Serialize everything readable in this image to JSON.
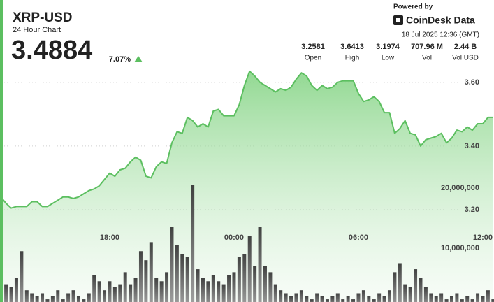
{
  "header": {
    "title": "XRP-USD",
    "subtitle": "24 Hour Chart",
    "price": "3.4884",
    "change": "7.07%",
    "powered_by": "Powered by",
    "brand": "CoinDesk Data",
    "timestamp": "18 Jul 2025 12:36 (GMT)",
    "stats": [
      {
        "value": "3.2581",
        "label": "Open"
      },
      {
        "value": "3.6413",
        "label": "High"
      },
      {
        "value": "3.1974",
        "label": "Low"
      },
      {
        "value": "707.96 M",
        "label": "Vol"
      },
      {
        "value": "2.44 B",
        "label": "Vol USD"
      }
    ]
  },
  "chart_data": {
    "type": "line",
    "categories": [
      null,
      null,
      null,
      null,
      null,
      null,
      null,
      null,
      null,
      null,
      null,
      null,
      null,
      null,
      null,
      null,
      null,
      null,
      null,
      null,
      null,
      "18:00",
      null,
      null,
      null,
      null,
      null,
      null,
      null,
      null,
      null,
      null,
      null,
      null,
      null,
      null,
      null,
      null,
      null,
      null,
      null,
      null,
      null,
      null,
      null,
      "00:00",
      null,
      null,
      null,
      null,
      null,
      null,
      null,
      null,
      null,
      null,
      null,
      null,
      null,
      null,
      null,
      null,
      null,
      null,
      null,
      null,
      null,
      null,
      null,
      "06:00",
      null,
      null,
      null,
      null,
      null,
      null,
      null,
      null,
      null,
      null,
      null,
      null,
      null,
      null,
      null,
      null,
      null,
      null,
      null,
      null,
      null,
      null,
      null,
      "12:00",
      null,
      null
    ],
    "series": [
      {
        "name": "Price",
        "type": "line",
        "axis": "y",
        "color": "#5cbf60",
        "values": [
          3.24,
          3.22,
          3.205,
          3.21,
          3.21,
          3.21,
          3.225,
          3.225,
          3.21,
          3.21,
          3.22,
          3.23,
          3.24,
          3.24,
          3.235,
          3.24,
          3.25,
          3.26,
          3.265,
          3.275,
          3.295,
          3.315,
          3.305,
          3.325,
          3.33,
          3.35,
          3.365,
          3.355,
          3.305,
          3.3,
          3.335,
          3.35,
          3.345,
          3.41,
          3.445,
          3.44,
          3.49,
          3.48,
          3.46,
          3.47,
          3.46,
          3.51,
          3.515,
          3.495,
          3.495,
          3.495,
          3.53,
          3.59,
          3.635,
          3.62,
          3.6,
          3.59,
          3.58,
          3.57,
          3.58,
          3.575,
          3.585,
          3.61,
          3.63,
          3.62,
          3.59,
          3.575,
          3.59,
          3.58,
          3.585,
          3.6,
          3.605,
          3.605,
          3.605,
          3.565,
          3.54,
          3.545,
          3.555,
          3.54,
          3.505,
          3.505,
          3.44,
          3.455,
          3.48,
          3.44,
          3.435,
          3.4,
          3.42,
          3.425,
          3.43,
          3.44,
          3.41,
          3.425,
          3.45,
          3.445,
          3.46,
          3.45,
          3.47,
          3.47,
          3.49,
          3.49
        ]
      },
      {
        "name": "Volume",
        "type": "bar",
        "axis": "y2",
        "color": "#3d3d3d",
        "values": [
          4500000,
          4000000,
          3500000,
          5000000,
          9500000,
          3000000,
          2500000,
          2000000,
          2500000,
          1500000,
          2000000,
          3000000,
          1500000,
          2500000,
          3000000,
          2000000,
          1500000,
          2500000,
          5500000,
          4500000,
          3000000,
          4500000,
          3500000,
          4000000,
          6000000,
          4000000,
          5000000,
          9500000,
          8000000,
          11000000,
          5000000,
          4500000,
          6000000,
          13500000,
          10500000,
          9000000,
          8500000,
          20500000,
          6500000,
          5000000,
          4500000,
          5500000,
          4500000,
          4000000,
          5500000,
          6000000,
          8500000,
          9000000,
          12000000,
          7000000,
          13500000,
          7000000,
          6000000,
          4000000,
          3000000,
          2500000,
          2000000,
          2500000,
          3000000,
          2000000,
          1500000,
          2500000,
          2000000,
          1500000,
          2000000,
          2500000,
          1500000,
          2000000,
          1500000,
          2500000,
          3000000,
          2000000,
          1500000,
          2500000,
          2000000,
          3000000,
          6000000,
          7500000,
          4000000,
          3500000,
          6500000,
          5000000,
          3500000,
          2500000,
          2000000,
          2500000,
          1500000,
          2000000,
          2500000,
          1500000,
          2000000,
          1500000,
          2500000,
          2000000,
          3000000,
          1500000
        ]
      }
    ],
    "ylim": [
      2.89,
      3.648
    ],
    "yticks": [
      {
        "value": 3.2,
        "label": "3.20"
      },
      {
        "value": 3.4,
        "label": "3.40"
      },
      {
        "value": 3.6,
        "label": "3.60"
      }
    ],
    "y2lim": [
      0,
      40100000
    ],
    "y2ticks": [
      {
        "value": 10000000,
        "label": "10,000,000"
      },
      {
        "value": 20000000,
        "label": "20,000,000"
      }
    ],
    "grid": true
  }
}
